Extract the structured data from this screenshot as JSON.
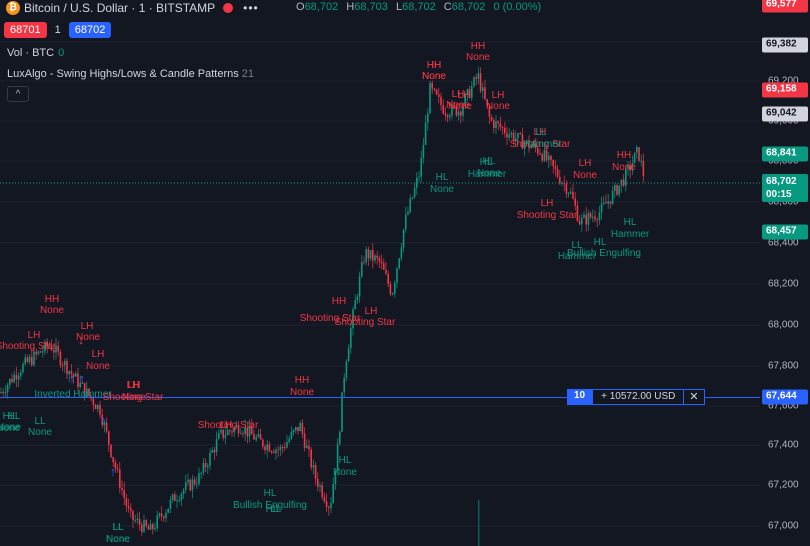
{
  "header": {
    "icon_glyph": "₿",
    "title": "Bitcoin / U.S. Dollar · 1 · BITSTAMP",
    "more_icon": "dots-icon",
    "ohlc": {
      "o_label": "O",
      "o": "68,702",
      "h_label": "H",
      "h": "68,703",
      "l_label": "L",
      "l": "68,702",
      "c_label": "C",
      "c": "68,702",
      "change": "0 (0.00%)"
    }
  },
  "trade": {
    "sell_price": "68701",
    "qty": "1",
    "buy_price": "68702"
  },
  "legend": {
    "vol_label": "Vol · BTC",
    "vol_value": "0",
    "indicator_name": "LuxAlgo - Swing Highs/Lows & Candle Patterns",
    "indicator_param": "21"
  },
  "collapse_glyph": "^",
  "colors": {
    "up": "#089981",
    "down": "#f23645",
    "bg": "#131722",
    "accent": "#2962ff"
  },
  "price_axis": {
    "ticks": [
      "69,400",
      "69,200",
      "69,000",
      "68,800",
      "68,600",
      "68,400",
      "68,200",
      "68,000",
      "67,800",
      "67,600",
      "67,400",
      "67,200",
      "67,000"
    ],
    "badges": [
      {
        "text": "69,577",
        "kind": "red"
      },
      {
        "text": "69,382",
        "kind": "gray"
      },
      {
        "text": "69,158",
        "kind": "red"
      },
      {
        "text": "69,042",
        "kind": "gray"
      },
      {
        "text": "68,841",
        "kind": "green"
      },
      {
        "text": "68,702",
        "sub": "00:15",
        "kind": "green"
      },
      {
        "text": "68,457",
        "kind": "green"
      },
      {
        "text": "67,644",
        "kind": "blue"
      }
    ]
  },
  "order": {
    "qty": "10",
    "text": "+ 10572.00 USD",
    "close_glyph": "✕"
  },
  "annotations": [
    {
      "t": "HH",
      "c": "red"
    },
    {
      "t": "None",
      "c": "red"
    },
    {
      "t": "LH",
      "c": "red"
    },
    {
      "t": "Shooting Star",
      "c": "red"
    },
    {
      "t": "LH",
      "c": "red"
    },
    {
      "t": "None",
      "c": "red"
    },
    {
      "t": "HL",
      "c": "green"
    },
    {
      "t": "None",
      "c": "green"
    },
    {
      "t": "LL",
      "c": "green"
    },
    {
      "t": "None",
      "c": "green"
    },
    {
      "t": "Inverted Hammer",
      "c": "green"
    },
    {
      "t": "LH",
      "c": "red"
    },
    {
      "t": "None",
      "c": "red"
    },
    {
      "t": "LH",
      "c": "red"
    },
    {
      "t": "Shooting Star",
      "c": "red"
    },
    {
      "t": "LH",
      "c": "red"
    },
    {
      "t": "None",
      "c": "red"
    },
    {
      "t": "LL",
      "c": "green"
    },
    {
      "t": "None",
      "c": "green"
    },
    {
      "t": "HL",
      "c": "green"
    },
    {
      "t": "None",
      "c": "green"
    },
    {
      "t": "HH",
      "c": "red"
    },
    {
      "t": "None",
      "c": "red"
    },
    {
      "t": "LH",
      "c": "red"
    },
    {
      "t": "Shooting Star",
      "c": "red"
    },
    {
      "t": "HH",
      "c": "red"
    },
    {
      "t": "None",
      "c": "red"
    },
    {
      "t": "HH",
      "c": "red"
    },
    {
      "t": "None",
      "c": "red"
    },
    {
      "t": "LH",
      "c": "red"
    },
    {
      "t": "None",
      "c": "red"
    },
    {
      "t": "HL",
      "c": "green"
    },
    {
      "t": "None",
      "c": "green"
    },
    {
      "t": "HL",
      "c": "green"
    },
    {
      "t": "Bullish Engulfing",
      "c": "green"
    },
    {
      "t": "LL",
      "c": "green"
    },
    {
      "t": "HL",
      "c": "green"
    },
    {
      "t": "HH",
      "c": "red"
    },
    {
      "t": "Shooting Star",
      "c": "red"
    },
    {
      "t": "HL",
      "c": "green"
    },
    {
      "t": "None",
      "c": "green"
    },
    {
      "t": "LL",
      "c": "green"
    },
    {
      "t": "None",
      "c": "green"
    },
    {
      "t": "LH",
      "c": "red"
    },
    {
      "t": "Shooting Star",
      "c": "red"
    },
    {
      "t": "LH",
      "c": "red"
    },
    {
      "t": "None",
      "c": "red"
    },
    {
      "t": "HH",
      "c": "red"
    },
    {
      "t": "None",
      "c": "red"
    },
    {
      "t": "LH",
      "c": "red"
    },
    {
      "t": "Shooting Star",
      "c": "red"
    },
    {
      "t": "LH",
      "c": "red"
    },
    {
      "t": "None",
      "c": "red"
    },
    {
      "t": "HL",
      "c": "green"
    },
    {
      "t": "None",
      "c": "green"
    },
    {
      "t": "HL",
      "c": "green"
    },
    {
      "t": "Hammer",
      "c": "green"
    },
    {
      "t": "LH",
      "c": "red"
    },
    {
      "t": "Shooting Star",
      "c": "red"
    },
    {
      "t": "LL",
      "c": "green"
    },
    {
      "t": "Hammer",
      "c": "green"
    },
    {
      "t": "LH",
      "c": "red"
    },
    {
      "t": "None",
      "c": "red"
    },
    {
      "t": "HH",
      "c": "red"
    },
    {
      "t": "None",
      "c": "red"
    },
    {
      "t": "LL",
      "c": "green"
    },
    {
      "t": "Hammer",
      "c": "green"
    },
    {
      "t": "HL",
      "c": "green"
    },
    {
      "t": "Bullish Engulfing",
      "c": "green"
    },
    {
      "t": "HL",
      "c": "green"
    },
    {
      "t": "Hammer",
      "c": "green"
    }
  ],
  "arrows": [
    {
      "glyph": "↓",
      "c": "red"
    },
    {
      "glyph": "↑",
      "c": "blue"
    },
    {
      "glyph": "↑",
      "c": "blue"
    },
    {
      "glyph": "↑",
      "c": "blue"
    },
    {
      "glyph": "↑",
      "c": "blue"
    }
  ]
}
